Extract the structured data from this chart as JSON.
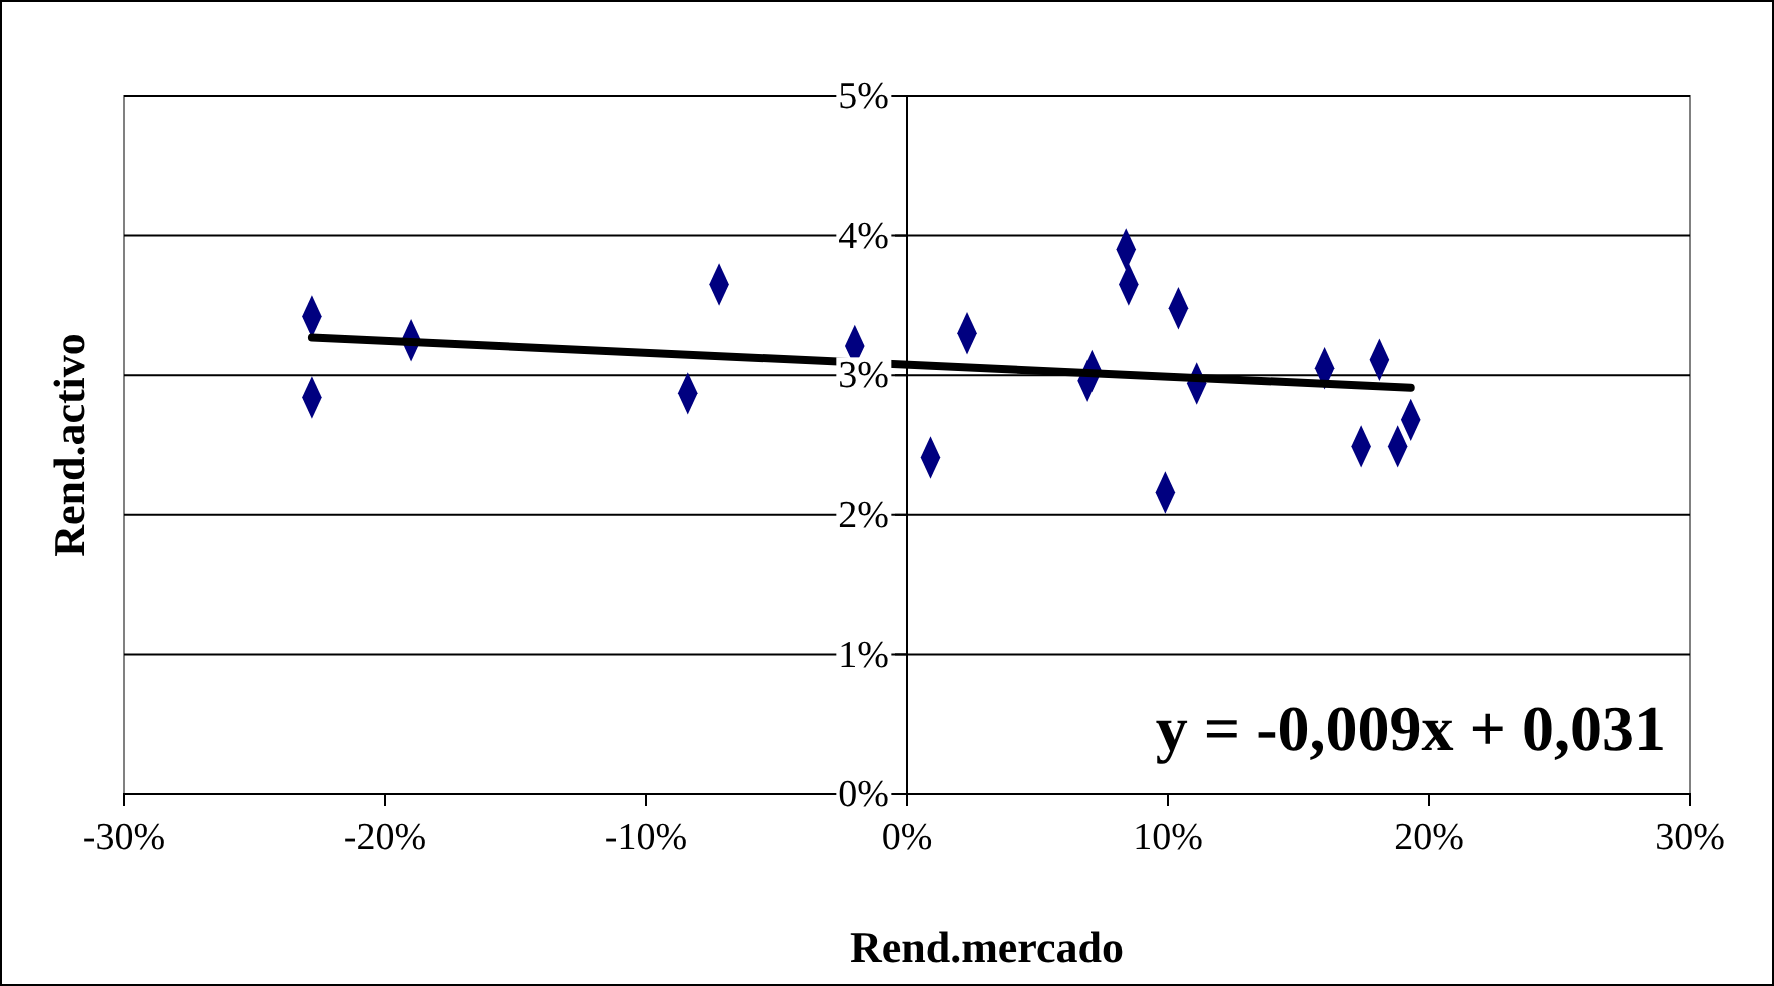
{
  "chart_data": {
    "type": "scatter",
    "xlabel": "Rend.mercado",
    "ylabel": "Rend.activo",
    "marker": "diamond",
    "grid": "y",
    "annotations": [
      "y = -0,009x + 0,031"
    ],
    "xlim": [
      -30,
      30
    ],
    "xticks": [
      {
        "value": -30,
        "label": "-30%"
      },
      {
        "value": -20,
        "label": "-20%"
      },
      {
        "value": -10,
        "label": "-10%"
      },
      {
        "value": 0,
        "label": "0%"
      },
      {
        "value": 10,
        "label": "10%"
      },
      {
        "value": 20,
        "label": "20%"
      },
      {
        "value": 30,
        "label": "30%"
      }
    ],
    "ylim": [
      0,
      5
    ],
    "yticks": [
      {
        "value": 0,
        "label": "0%"
      },
      {
        "value": 1,
        "label": "1%"
      },
      {
        "value": 2,
        "label": "2%"
      },
      {
        "value": 3,
        "label": "3%"
      },
      {
        "value": 4,
        "label": "4%"
      },
      {
        "value": 5,
        "label": "5%"
      }
    ],
    "series": [
      {
        "type": "scatter",
        "color": "#000080",
        "x": [
          -22.8,
          -22.8,
          -19.0,
          -8.4,
          -7.2,
          -2.0,
          0.9,
          2.3,
          6.9,
          7.1,
          8.4,
          8.5,
          10.4,
          9.9,
          11.1,
          16.0,
          18.1,
          17.4,
          18.8,
          19.3
        ],
        "values": [
          3.42,
          2.84,
          3.25,
          2.87,
          3.65,
          3.21,
          2.41,
          3.3,
          2.96,
          3.03,
          3.9,
          3.65,
          3.48,
          2.16,
          2.94,
          3.05,
          3.11,
          2.49,
          2.49,
          2.68
        ]
      },
      {
        "type": "line",
        "color": "#000000",
        "marker": "none",
        "x": [
          -22.8,
          19.3
        ],
        "values": [
          3.27,
          2.91
        ]
      }
    ]
  }
}
